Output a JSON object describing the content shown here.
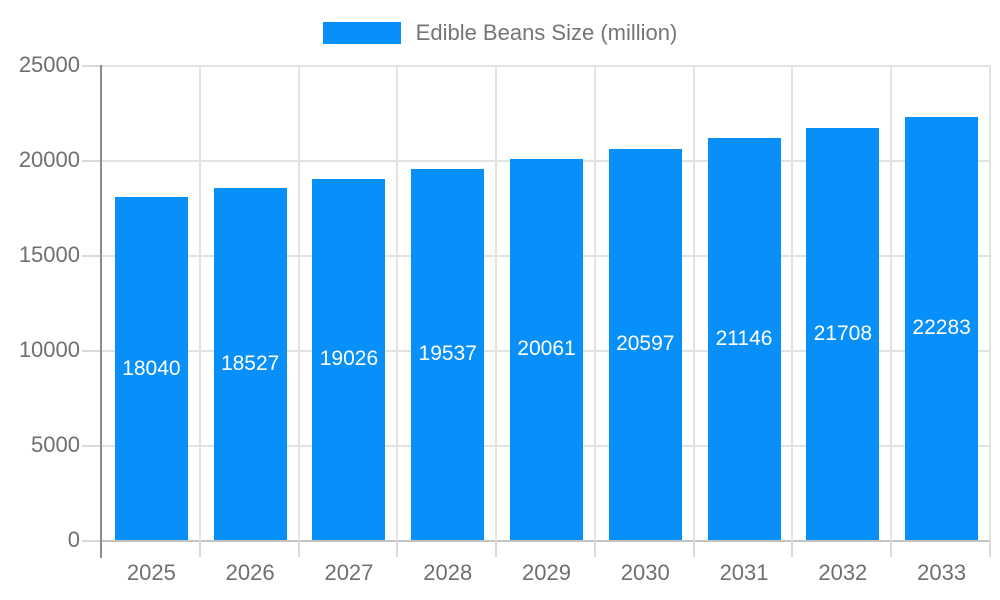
{
  "chart_data": {
    "type": "bar",
    "categories": [
      "2025",
      "2026",
      "2027",
      "2028",
      "2029",
      "2030",
      "2031",
      "2032",
      "2033"
    ],
    "values": [
      18040,
      18527,
      19026,
      19537,
      20061,
      20597,
      21146,
      21708,
      22283
    ],
    "series_name": "Edible Beans Size (million)",
    "title": "",
    "xlabel": "",
    "ylabel": "",
    "ylim": [
      0,
      25000
    ],
    "yticks": [
      0,
      5000,
      10000,
      15000,
      20000,
      25000
    ],
    "grid": true,
    "legend_position": "top-center",
    "bar_labels_visible": true,
    "colors": {
      "bar": "#0890fa",
      "bar_label_text": "#ffffff",
      "axis_text": "#6f6f6f",
      "legend_text": "#757575",
      "gridline": "#e2e2e2",
      "y_axis_line": "#8c8c8c",
      "zero_line": "#c2c2c2",
      "tick": "#d9d9d9",
      "background": "#ffffff"
    }
  },
  "legend": {
    "label": "Edible Beans Size (million)"
  }
}
